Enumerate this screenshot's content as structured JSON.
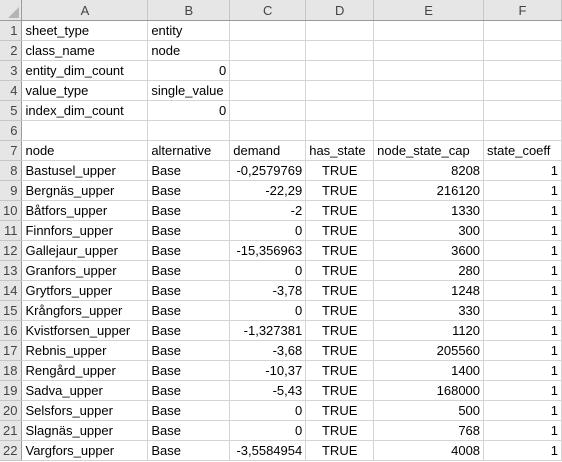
{
  "columns": [
    "A",
    "B",
    "C",
    "D",
    "E",
    "F"
  ],
  "meta_rows": [
    {
      "row": "1",
      "a": "sheet_type",
      "b": "entity",
      "b_align": "left"
    },
    {
      "row": "2",
      "a": "class_name",
      "b": "node",
      "b_align": "left"
    },
    {
      "row": "3",
      "a": "entity_dim_count",
      "b": "0",
      "b_align": "right"
    },
    {
      "row": "4",
      "a": "value_type",
      "b": "single_value",
      "b_align": "left"
    },
    {
      "row": "5",
      "a": "index_dim_count",
      "b": "0",
      "b_align": "right"
    },
    {
      "row": "6",
      "a": "",
      "b": "",
      "b_align": "left"
    }
  ],
  "header_row": {
    "row": "7",
    "cells": [
      "node",
      "alternative",
      "demand",
      "has_state",
      "node_state_cap",
      "state_coeff"
    ]
  },
  "data_rows": [
    {
      "row": "8",
      "node": "Bastusel_upper",
      "alternative": "Base",
      "demand": "-0,2579769",
      "has_state": "TRUE",
      "cap": "8208",
      "coeff": "1"
    },
    {
      "row": "9",
      "node": "Bergnäs_upper",
      "alternative": "Base",
      "demand": "-22,29",
      "has_state": "TRUE",
      "cap": "216120",
      "coeff": "1"
    },
    {
      "row": "10",
      "node": "Båtfors_upper",
      "alternative": "Base",
      "demand": "-2",
      "has_state": "TRUE",
      "cap": "1330",
      "coeff": "1"
    },
    {
      "row": "11",
      "node": "Finnfors_upper",
      "alternative": "Base",
      "demand": "0",
      "has_state": "TRUE",
      "cap": "300",
      "coeff": "1"
    },
    {
      "row": "12",
      "node": "Gallejaur_upper",
      "alternative": "Base",
      "demand": "-15,356963",
      "has_state": "TRUE",
      "cap": "3600",
      "coeff": "1"
    },
    {
      "row": "13",
      "node": "Granfors_upper",
      "alternative": "Base",
      "demand": "0",
      "has_state": "TRUE",
      "cap": "280",
      "coeff": "1"
    },
    {
      "row": "14",
      "node": "Grytfors_upper",
      "alternative": "Base",
      "demand": "-3,78",
      "has_state": "TRUE",
      "cap": "1248",
      "coeff": "1"
    },
    {
      "row": "15",
      "node": "Krångfors_upper",
      "alternative": "Base",
      "demand": "0",
      "has_state": "TRUE",
      "cap": "330",
      "coeff": "1"
    },
    {
      "row": "16",
      "node": "Kvistforsen_upper",
      "alternative": "Base",
      "demand": "-1,327381",
      "has_state": "TRUE",
      "cap": "1120",
      "coeff": "1"
    },
    {
      "row": "17",
      "node": "Rebnis_upper",
      "alternative": "Base",
      "demand": "-3,68",
      "has_state": "TRUE",
      "cap": "205560",
      "coeff": "1"
    },
    {
      "row": "18",
      "node": "Rengård_upper",
      "alternative": "Base",
      "demand": "-10,37",
      "has_state": "TRUE",
      "cap": "1400",
      "coeff": "1"
    },
    {
      "row": "19",
      "node": "Sadva_upper",
      "alternative": "Base",
      "demand": "-5,43",
      "has_state": "TRUE",
      "cap": "168000",
      "coeff": "1"
    },
    {
      "row": "20",
      "node": "Selsfors_upper",
      "alternative": "Base",
      "demand": "0",
      "has_state": "TRUE",
      "cap": "500",
      "coeff": "1"
    },
    {
      "row": "21",
      "node": "Slagnäs_upper",
      "alternative": "Base",
      "demand": "0",
      "has_state": "TRUE",
      "cap": "768",
      "coeff": "1"
    },
    {
      "row": "22",
      "node": "Vargfors_upper",
      "alternative": "Base",
      "demand": "-3,5584954",
      "has_state": "TRUE",
      "cap": "4008",
      "coeff": "1"
    }
  ]
}
